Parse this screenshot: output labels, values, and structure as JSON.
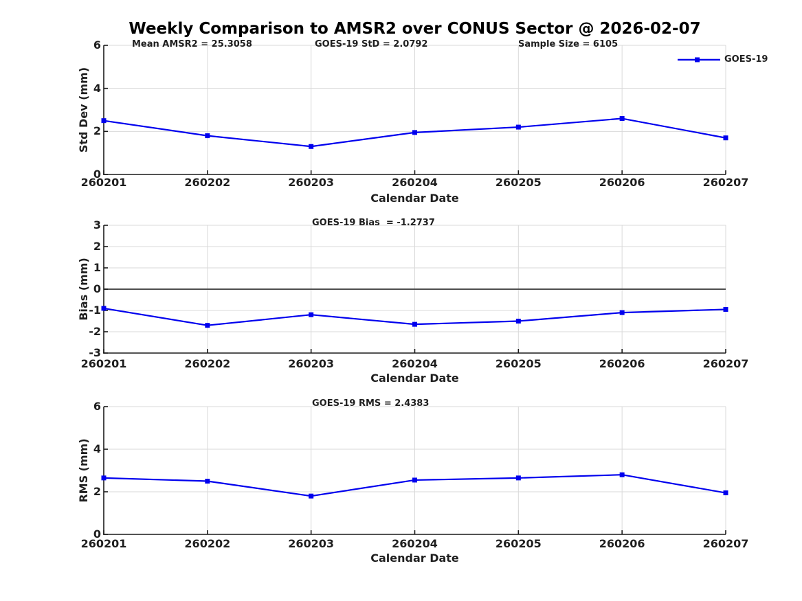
{
  "title": "Weekly Comparison to AMSR2 over CONUS Sector @ 2026-02-07",
  "legend": {
    "label": "GOES-19",
    "position": "top-right"
  },
  "colors": {
    "line": "#0000EE",
    "grid": "#d9d9d9",
    "axis": "#1a1a1a",
    "zero_line": "#4d4d4d",
    "text": "#1f1f1f"
  },
  "chart_data": [
    {
      "type": "line",
      "title": "Weekly Comparison to AMSR2 over CONUS Sector @ 2026-02-07",
      "annotations": [
        "Mean AMSR2 = 25.3058",
        "GOES-19 StD = 2.0792",
        "Sample Size = 6105"
      ],
      "categories": [
        "260201",
        "260202",
        "260203",
        "260204",
        "260205",
        "260206",
        "260207"
      ],
      "series": [
        {
          "name": "GOES-19",
          "values": [
            2.5,
            1.8,
            1.3,
            1.95,
            2.2,
            2.6,
            1.7
          ]
        }
      ],
      "xlabel": "Calendar Date",
      "ylabel": "Std Dev (mm)",
      "ylim": [
        0,
        6
      ],
      "yticks": [
        0,
        2,
        4,
        6
      ],
      "grid": true,
      "zero_line": false,
      "legend": true,
      "legend_position": "top-right",
      "marker": "square"
    },
    {
      "type": "line",
      "annotations": [
        "GOES-19 Bias  = -1.2737"
      ],
      "categories": [
        "260201",
        "260202",
        "260203",
        "260204",
        "260205",
        "260206",
        "260207"
      ],
      "series": [
        {
          "name": "GOES-19",
          "values": [
            -0.9,
            -1.7,
            -1.2,
            -1.65,
            -1.5,
            -1.1,
            -0.95
          ]
        }
      ],
      "xlabel": "Calendar Date",
      "ylabel": "Bias (mm)",
      "ylim": [
        -3,
        3
      ],
      "yticks": [
        -3,
        -2,
        -1,
        0,
        1,
        2,
        3
      ],
      "grid": true,
      "zero_line": true,
      "legend": false,
      "marker": "square"
    },
    {
      "type": "line",
      "annotations": [
        "GOES-19 RMS = 2.4383"
      ],
      "categories": [
        "260201",
        "260202",
        "260203",
        "260204",
        "260205",
        "260206",
        "260207"
      ],
      "series": [
        {
          "name": "GOES-19",
          "values": [
            2.65,
            2.5,
            1.8,
            2.55,
            2.65,
            2.8,
            1.95
          ]
        }
      ],
      "xlabel": "Calendar Date",
      "ylabel": "RMS (mm)",
      "ylim": [
        0,
        6
      ],
      "yticks": [
        0,
        2,
        4,
        6
      ],
      "grid": true,
      "zero_line": false,
      "legend": false,
      "marker": "square"
    }
  ]
}
